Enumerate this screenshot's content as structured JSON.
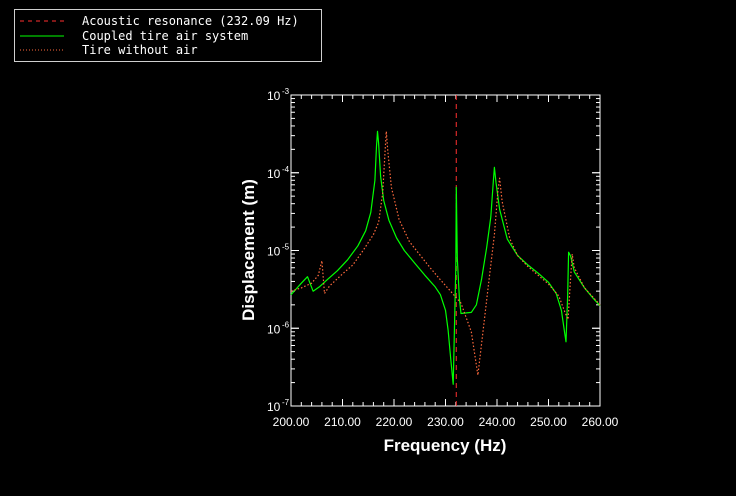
{
  "chart_data": {
    "type": "line",
    "xlabel": "Frequency (Hz)",
    "ylabel": "Displacement (m)",
    "xlim": [
      200,
      260
    ],
    "ylim": [
      1e-07,
      0.001
    ],
    "y_scale": "log",
    "grid": false,
    "legend_placement": "top-left",
    "x_ticks": [
      "200.00",
      "210.00",
      "220.00",
      "230.00",
      "240.00",
      "250.00",
      "260.00"
    ],
    "y_ticks": [
      {
        "base": "10",
        "exp": "-3",
        "value": 0.001
      },
      {
        "base": "10",
        "exp": "-4",
        "value": 0.0001
      },
      {
        "base": "10",
        "exp": "-5",
        "value": 1e-05
      },
      {
        "base": "10",
        "exp": "-6",
        "value": 1e-06
      },
      {
        "base": "10",
        "exp": "-7",
        "value": 1e-07
      }
    ],
    "series": [
      {
        "name": "Acoustic resonance (232.09 Hz)",
        "color": "#ff3030",
        "style": "dashed",
        "vertical_x": 232.09
      },
      {
        "name": "Coupled tire air system",
        "color": "#00ff00",
        "style": "solid",
        "points": [
          [
            200.0,
            2.7e-06
          ],
          [
            201.0,
            3.2e-06
          ],
          [
            202.0,
            3.8e-06
          ],
          [
            203.2,
            4.6e-06
          ],
          [
            204.3,
            3e-06
          ],
          [
            205.5,
            3.4e-06
          ],
          [
            207.0,
            4.2e-06
          ],
          [
            209.0,
            5.5e-06
          ],
          [
            211.0,
            7.6e-06
          ],
          [
            213.0,
            1.15e-05
          ],
          [
            214.5,
            1.8e-05
          ],
          [
            215.5,
            3.1e-05
          ],
          [
            216.3,
            8e-05
          ],
          [
            216.6,
            0.00022
          ],
          [
            216.8,
            0.00034
          ],
          [
            217.0,
            0.00024
          ],
          [
            217.4,
            9e-05
          ],
          [
            218.0,
            4.4e-05
          ],
          [
            219.0,
            2.45e-05
          ],
          [
            220.5,
            1.45e-05
          ],
          [
            222.0,
            1e-05
          ],
          [
            224.0,
            6.9e-06
          ],
          [
            226.0,
            4.8e-06
          ],
          [
            228.0,
            3.4e-06
          ],
          [
            229.0,
            2.7e-06
          ],
          [
            230.0,
            1.7e-06
          ],
          [
            230.5,
            9.5e-07
          ],
          [
            231.0,
            4.2e-07
          ],
          [
            231.5,
            1.9e-07
          ],
          [
            232.0,
            6e-06
          ],
          [
            232.1,
            6.5e-05
          ],
          [
            232.3,
            8e-06
          ],
          [
            232.7,
            2.4e-06
          ],
          [
            233.0,
            1.55e-06
          ],
          [
            235.0,
            1.6e-06
          ],
          [
            236.0,
            2e-06
          ],
          [
            237.0,
            4.3e-06
          ],
          [
            238.0,
            1.1e-05
          ],
          [
            238.8,
            2.7e-05
          ],
          [
            239.3,
            8e-05
          ],
          [
            239.5,
            0.000117
          ],
          [
            239.8,
            7.5e-05
          ],
          [
            240.5,
            3.4e-05
          ],
          [
            242.0,
            1.4e-05
          ],
          [
            244.0,
            8.6e-06
          ],
          [
            246.0,
            6.5e-06
          ],
          [
            248.0,
            5.1e-06
          ],
          [
            250.0,
            3.9e-06
          ],
          [
            251.5,
            2.8e-06
          ],
          [
            252.5,
            1.7e-06
          ],
          [
            253.1,
            9e-07
          ],
          [
            253.4,
            6.7e-07
          ],
          [
            253.7,
            2.5e-06
          ],
          [
            253.9,
            9.5e-06
          ],
          [
            254.3,
            8.5e-06
          ],
          [
            255.0,
            5.3e-06
          ],
          [
            257.0,
            3.3e-06
          ],
          [
            258.5,
            2.5e-06
          ],
          [
            260.0,
            1.95e-06
          ]
        ]
      },
      {
        "name": "Tire without air",
        "color": "#ff6a3d",
        "style": "dotted",
        "points": [
          [
            200.0,
            3e-06
          ],
          [
            202.0,
            3.3e-06
          ],
          [
            204.0,
            3.8e-06
          ],
          [
            205.3,
            4.8e-06
          ],
          [
            206.0,
            7.4e-06
          ],
          [
            206.5,
            2.8e-06
          ],
          [
            207.5,
            3.5e-06
          ],
          [
            210.0,
            5e-06
          ],
          [
            212.0,
            6.5e-06
          ],
          [
            214.0,
            1e-05
          ],
          [
            216.0,
            1.6e-05
          ],
          [
            217.0,
            2.3e-05
          ],
          [
            217.8,
            5.5e-05
          ],
          [
            218.3,
            0.0002
          ],
          [
            218.5,
            0.00034
          ],
          [
            218.8,
            0.00019
          ],
          [
            219.5,
            6.5e-05
          ],
          [
            221.0,
            2.5e-05
          ],
          [
            223.0,
            1.3e-05
          ],
          [
            225.0,
            8.8e-06
          ],
          [
            227.0,
            6e-06
          ],
          [
            229.0,
            4.2e-06
          ],
          [
            231.0,
            3e-06
          ],
          [
            233.0,
            2.1e-06
          ],
          [
            235.0,
            9e-07
          ],
          [
            236.3,
            2.5e-07
          ],
          [
            237.5,
            1.2e-06
          ],
          [
            238.5,
            4.5e-06
          ],
          [
            239.5,
            1.6e-05
          ],
          [
            240.2,
            6e-05
          ],
          [
            240.5,
            8.5e-05
          ],
          [
            241.0,
            4.3e-05
          ],
          [
            242.5,
            1.4e-05
          ],
          [
            244.0,
            8.6e-06
          ],
          [
            246.0,
            6.2e-06
          ],
          [
            248.0,
            4.8e-06
          ],
          [
            250.0,
            3.7e-06
          ],
          [
            252.0,
            2.6e-06
          ],
          [
            253.2,
            1.6e-06
          ],
          [
            253.8,
            1.3e-06
          ],
          [
            254.2,
            3.5e-06
          ],
          [
            254.6,
            9e-06
          ],
          [
            255.0,
            6e-06
          ],
          [
            257.0,
            3.3e-06
          ],
          [
            260.0,
            2e-06
          ]
        ]
      }
    ]
  }
}
